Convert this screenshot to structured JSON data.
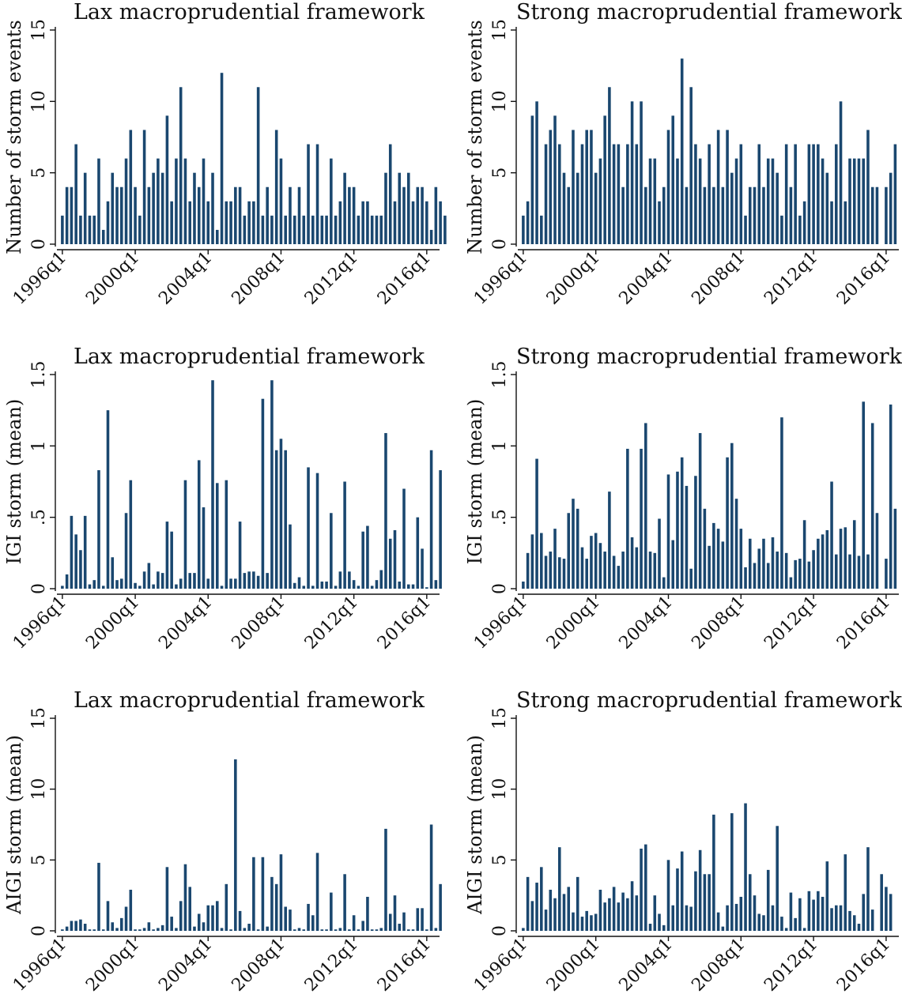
{
  "chart_data": [
    {
      "type": "bar",
      "title": "Lax macroprudential framework",
      "ylabel": "Number of storm events",
      "ylim": [
        0,
        15
      ],
      "yticks": [
        "0",
        "5",
        "10",
        "15"
      ],
      "xticks": [
        "1996q1",
        "2000q1",
        "2004q1",
        "2008q1",
        "2012q1",
        "2016q1"
      ],
      "x_start": "1996q1",
      "values": [
        2,
        4,
        4,
        7,
        2,
        5,
        2,
        2,
        6,
        1,
        3,
        5,
        4,
        4,
        6,
        8,
        4,
        2,
        8,
        4,
        5,
        6,
        5,
        9,
        3,
        6,
        11,
        6,
        3,
        5,
        4,
        6,
        3,
        5,
        1,
        12,
        3,
        3,
        4,
        4,
        2,
        3,
        3,
        11,
        2,
        4,
        2,
        8,
        6,
        2,
        4,
        2,
        4,
        2,
        7,
        2,
        7,
        2,
        2,
        6,
        2,
        3,
        5,
        4,
        4,
        2,
        3,
        3,
        2,
        2,
        2,
        5,
        7,
        3,
        5,
        4,
        5,
        3,
        4,
        4,
        3,
        1,
        4,
        3,
        2
      ]
    },
    {
      "type": "bar",
      "title": "Strong macroprudential framework",
      "ylabel": "Number of storm events",
      "ylim": [
        0,
        15
      ],
      "yticks": [
        "0",
        "5",
        "10",
        "15"
      ],
      "xticks": [
        "1996q1",
        "2000q1",
        "2004q1",
        "2008q1",
        "2012q1",
        "2016q1"
      ],
      "x_start": "1996q1",
      "values": [
        2,
        3,
        9,
        10,
        2,
        7,
        8,
        9,
        7,
        5,
        4,
        8,
        5,
        7,
        8,
        8,
        5,
        6,
        9,
        11,
        7,
        7,
        4,
        7,
        10,
        7,
        10,
        4,
        6,
        6,
        3,
        4,
        8,
        9,
        6,
        13,
        4,
        11,
        7,
        6,
        4,
        7,
        4,
        8,
        4,
        8,
        5,
        6,
        7,
        2,
        4,
        4,
        7,
        4,
        6,
        6,
        5,
        2,
        7,
        4,
        7,
        2,
        3,
        7,
        7,
        7,
        6,
        5,
        3,
        7,
        10,
        3,
        6,
        6,
        6,
        6,
        8,
        4,
        4,
        null,
        4,
        5,
        7
      ]
    },
    {
      "type": "bar",
      "title": "Lax macroprudential framework",
      "ylabel": "IGI storm (mean)",
      "ylim": [
        0,
        1.5
      ],
      "yticks": [
        "0",
        ".5",
        "1",
        "1.5"
      ],
      "xticks": [
        "1996q1",
        "2000q1",
        "2004q1",
        "2008q1",
        "2012q1",
        "2016q1"
      ],
      "x_start": "1996q1",
      "values": [
        0.02,
        0.1,
        0.51,
        0.38,
        0.27,
        0.51,
        0.03,
        0.06,
        0.83,
        0.02,
        1.25,
        0.22,
        0.06,
        0.07,
        0.53,
        0.76,
        0.04,
        0.02,
        0.12,
        0.18,
        0.03,
        0.12,
        0.11,
        0.47,
        0.4,
        0.03,
        0.07,
        0.76,
        0.11,
        0.11,
        0.9,
        0.57,
        0.07,
        1.46,
        0.74,
        0.02,
        0.76,
        0.07,
        0.07,
        0.47,
        0.11,
        0.12,
        0.12,
        0.09,
        1.33,
        0.11,
        1.46,
        0.97,
        1.05,
        0.97,
        0.45,
        0.04,
        0.08,
        0.02,
        0.85,
        0.02,
        0.81,
        0.05,
        0.05,
        0.53,
        0.02,
        0.12,
        0.75,
        0.12,
        0.06,
        0.02,
        0.4,
        0.44,
        0.02,
        0.06,
        0.13,
        1.09,
        0.35,
        0.41,
        0.05,
        0.7,
        0.03,
        0.03,
        0.5,
        0.28,
        0.01,
        0.97,
        0.06,
        0.83
      ]
    },
    {
      "type": "bar",
      "title": "Strong macroprudential framework",
      "ylabel": "IGI storm (mean)",
      "ylim": [
        0,
        1.5
      ],
      "yticks": [
        "0",
        ".5",
        "1",
        "1.5"
      ],
      "xticks": [
        "1996q1",
        "2000q1",
        "2004q1",
        "2008q1",
        "2012q1",
        "2016q1"
      ],
      "x_start": "1996q1",
      "values": [
        0.05,
        0.25,
        0.38,
        0.91,
        0.39,
        0.23,
        0.26,
        0.42,
        0.22,
        0.21,
        0.53,
        0.63,
        0.56,
        0.29,
        0.21,
        0.37,
        0.39,
        0.32,
        0.26,
        0.68,
        0.23,
        0.16,
        0.26,
        0.98,
        0.36,
        0.29,
        0.98,
        1.16,
        0.26,
        0.25,
        0.49,
        0.08,
        0.8,
        0.34,
        0.82,
        0.92,
        0.72,
        0.14,
        0.79,
        1.09,
        0.56,
        0.3,
        0.46,
        0.42,
        0.33,
        0.92,
        1.02,
        0.63,
        0.42,
        0.15,
        0.35,
        0.18,
        0.28,
        0.35,
        0.18,
        0.36,
        0.26,
        1.2,
        0.25,
        0.08,
        0.2,
        0.21,
        0.48,
        0.19,
        0.27,
        0.35,
        0.38,
        0.41,
        0.75,
        0.24,
        0.42,
        0.43,
        0.24,
        0.48,
        0.23,
        1.31,
        0.24,
        1.16,
        0.53,
        null,
        0.21,
        1.29,
        0.56
      ]
    },
    {
      "type": "bar",
      "title": "Lax macroprudential framework",
      "ylabel": "AIGI storm (mean)",
      "ylim": [
        0,
        15
      ],
      "yticks": [
        "0",
        "5",
        "10",
        "15"
      ],
      "xticks": [
        "1996q1",
        "2000q1",
        "2004q1",
        "2008q1",
        "2012q1",
        "2016q1"
      ],
      "x_start": "1996q1",
      "values": [
        0.1,
        0.3,
        0.7,
        0.7,
        0.8,
        0.5,
        0.1,
        0.1,
        4.8,
        0.1,
        2.1,
        0.6,
        0.2,
        0.9,
        1.7,
        2.9,
        0.1,
        0.1,
        0.2,
        0.6,
        0.1,
        0.2,
        0.4,
        4.5,
        1.0,
        0.2,
        2.1,
        4.7,
        3.1,
        0.3,
        1.2,
        0.6,
        1.8,
        1.8,
        2.1,
        0.2,
        3.3,
        0.1,
        12.1,
        1.4,
        0.2,
        0.5,
        5.2,
        0.1,
        5.2,
        0.3,
        3.8,
        3.3,
        5.4,
        1.7,
        1.5,
        0.1,
        0.2,
        0.1,
        1.9,
        1.1,
        5.5,
        0.1,
        0.1,
        2.7,
        0.1,
        0.2,
        4.0,
        0.1,
        1.1,
        0.1,
        0.7,
        2.4,
        0.1,
        0.1,
        0.2,
        7.2,
        1.2,
        2.5,
        0.5,
        1.3,
        0.1,
        0.1,
        1.6,
        1.6,
        0.1,
        7.5,
        0.2,
        3.3
      ]
    },
    {
      "type": "bar",
      "title": "Strong macroprudential framework",
      "ylabel": "AIGI storm (mean)",
      "ylim": [
        0,
        15
      ],
      "yticks": [
        "0",
        "5",
        "10",
        "15"
      ],
      "xticks": [
        "1996q1",
        "2000q1",
        "2004q1",
        "2008q1",
        "2012q1",
        "2016q1"
      ],
      "x_start": "1996q1",
      "values": [
        0.2,
        3.8,
        2.1,
        3.4,
        4.5,
        1.5,
        2.9,
        2.3,
        5.9,
        2.6,
        3.1,
        1.3,
        3.8,
        1.0,
        1.4,
        1.1,
        1.2,
        2.9,
        2.0,
        2.3,
        3.1,
        2.0,
        2.7,
        2.3,
        3.5,
        2.5,
        5.8,
        6.1,
        0.5,
        2.5,
        1.2,
        0.4,
        5.0,
        1.8,
        4.4,
        5.6,
        1.8,
        1.7,
        4.2,
        5.7,
        4.0,
        4.0,
        8.2,
        1.3,
        0.3,
        1.8,
        8.3,
        1.9,
        2.4,
        9.0,
        4.0,
        2.5,
        1.2,
        1.1,
        4.3,
        1.8,
        7.4,
        1.0,
        0.2,
        2.7,
        0.9,
        2.3,
        0.2,
        2.8,
        2.2,
        2.8,
        2.4,
        4.9,
        1.6,
        1.8,
        1.8,
        5.4,
        1.4,
        1.1,
        0.5,
        2.6,
        5.9,
        1.5,
        null,
        4.0,
        3.1,
        2.6
      ]
    }
  ]
}
